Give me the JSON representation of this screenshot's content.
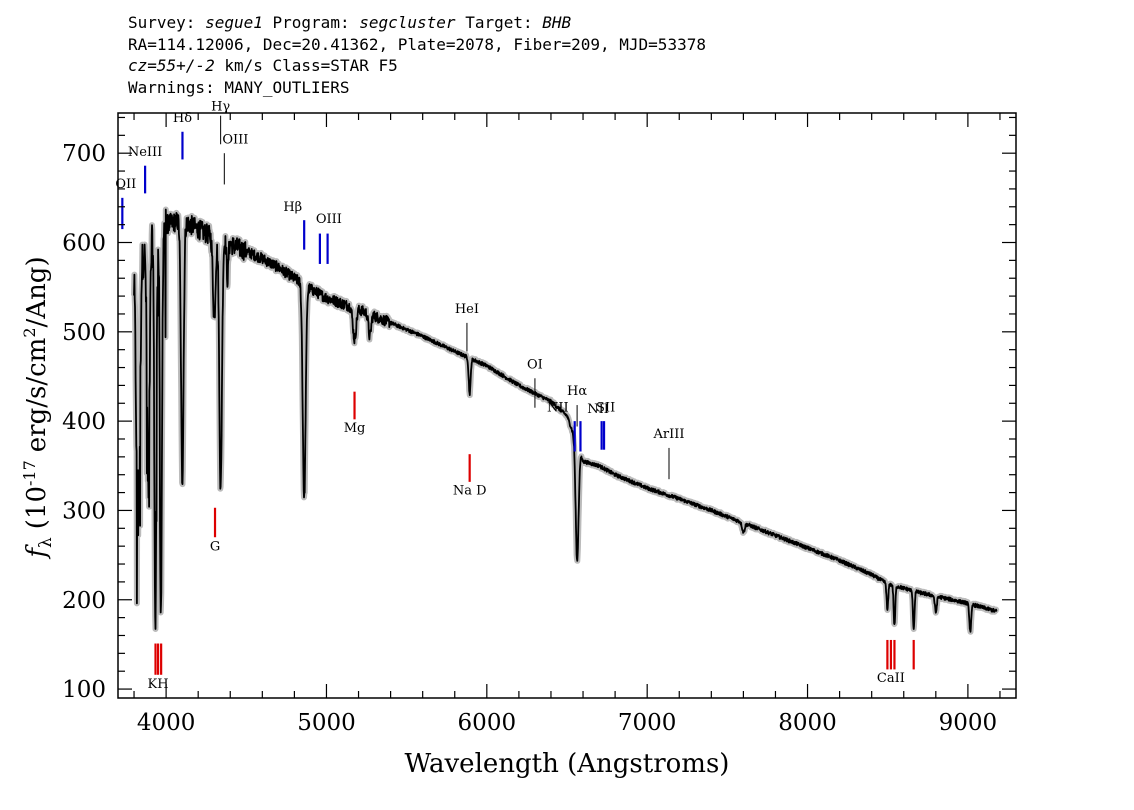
{
  "header": {
    "line1": {
      "survey_label": "Survey:",
      "survey": "segue1",
      "program_label": "Program:",
      "program": "segcluster",
      "target_label": "Target:",
      "target": "BHB"
    },
    "line2": "RA=114.12006, Dec=20.41362, Plate=2078, Fiber=209, MJD=53378",
    "line3": {
      "cz": "cz=55+/-2",
      "rest": "km/s Class=STAR F5"
    },
    "line4": "Warnings: MANY_OUTLIERS"
  },
  "chart_data": {
    "type": "line",
    "xlabel": "Wavelength (Angstroms)",
    "ylabel_parts": {
      "prefix": "f",
      "sub": "λ",
      "open": "(10",
      "exp1": "-17",
      "mid": "erg/s/cm",
      "exp2": "2",
      "close": "/Ang)"
    },
    "xlim": [
      3700,
      9300
    ],
    "ylim": [
      90,
      745
    ],
    "xticks": [
      4000,
      5000,
      6000,
      7000,
      8000,
      9000
    ],
    "yticks": [
      100,
      200,
      300,
      400,
      500,
      600,
      700
    ],
    "xtick_labels": [
      "4000",
      "5000",
      "6000",
      "7000",
      "8000",
      "9000"
    ],
    "ytick_labels": [
      "100",
      "200",
      "300",
      "400",
      "500",
      "600",
      "700"
    ],
    "colors": {
      "spectrum": "#000000",
      "error": "#bbbbbb",
      "emission": "#0000cc",
      "absorption": "#dd0000",
      "generic": "#000000"
    },
    "continuum": [
      [
        3800,
        560
      ],
      [
        3900,
        600
      ],
      [
        4000,
        620
      ],
      [
        4100,
        625
      ],
      [
        4200,
        615
      ],
      [
        4300,
        605
      ],
      [
        4400,
        598
      ],
      [
        4500,
        590
      ],
      [
        4600,
        582
      ],
      [
        4700,
        572
      ],
      [
        4800,
        560
      ],
      [
        4900,
        548
      ],
      [
        5000,
        538
      ],
      [
        5200,
        525
      ],
      [
        5400,
        510
      ],
      [
        5600,
        495
      ],
      [
        5800,
        478
      ],
      [
        6000,
        462
      ],
      [
        6200,
        440
      ],
      [
        6400,
        422
      ],
      [
        6500,
        406
      ],
      [
        6600,
        355
      ],
      [
        6700,
        350
      ],
      [
        6800,
        340
      ],
      [
        7000,
        325
      ],
      [
        7200,
        313
      ],
      [
        7400,
        300
      ],
      [
        7600,
        286
      ],
      [
        7800,
        272
      ],
      [
        8000,
        258
      ],
      [
        8200,
        244
      ],
      [
        8400,
        228
      ],
      [
        8500,
        218
      ],
      [
        8700,
        208
      ],
      [
        8900,
        200
      ],
      [
        9000,
        196
      ],
      [
        9200,
        186
      ]
    ],
    "absorption_features": [
      {
        "x": 3820,
        "depth": 240,
        "width": 8
      },
      {
        "x": 3835,
        "depth": 170,
        "width": 6
      },
      {
        "x": 3889,
        "depth": 270,
        "width": 8
      },
      {
        "x": 3933,
        "depth": 440,
        "width": 6
      },
      {
        "x": 3968,
        "depth": 440,
        "width": 6
      },
      {
        "x": 4101,
        "depth": 290,
        "width": 8
      },
      {
        "x": 4300,
        "depth": 90,
        "width": 8
      },
      {
        "x": 4340,
        "depth": 280,
        "width": 8
      },
      {
        "x": 4383,
        "depth": 40,
        "width": 5
      },
      {
        "x": 4861,
        "depth": 240,
        "width": 9
      },
      {
        "x": 5175,
        "depth": 35,
        "width": 10
      },
      {
        "x": 5270,
        "depth": 25,
        "width": 8
      },
      {
        "x": 5893,
        "depth": 40,
        "width": 6
      },
      {
        "x": 6563,
        "depth": 130,
        "width": 9
      },
      {
        "x": 7600,
        "depth": 10,
        "width": 8
      },
      {
        "x": 8498,
        "depth": 30,
        "width": 5
      },
      {
        "x": 8542,
        "depth": 45,
        "width": 5
      },
      {
        "x": 8662,
        "depth": 42,
        "width": 5
      },
      {
        "x": 8800,
        "depth": 18,
        "width": 6
      },
      {
        "x": 9015,
        "depth": 30,
        "width": 6
      }
    ],
    "lines": [
      {
        "name": "OII",
        "x": 3727,
        "color": "emission",
        "y_top": 650,
        "y_bottom": 615,
        "label_y": 661,
        "label_anchor": "start",
        "label_dx": -7
      },
      {
        "name": "NeIII",
        "x": 3869,
        "color": "emission",
        "y_top": 686,
        "y_bottom": 655,
        "label_y": 697,
        "label_anchor": "middle",
        "label_dx": 0
      },
      {
        "name": "Hδ",
        "x": 4102,
        "color": "emission",
        "y_top": 724,
        "y_bottom": 693,
        "label_y": 735,
        "label_anchor": "middle",
        "label_dx": 0
      },
      {
        "name": "Hγ",
        "x": 4340,
        "color": "generic",
        "y_top": 742,
        "y_bottom": 710,
        "label_y": 748,
        "label_anchor": "middle",
        "label_dx": 0
      },
      {
        "name": "OIII",
        "x": 4363,
        "color": "generic",
        "y_top": 700,
        "y_bottom": 665,
        "label_y": 711,
        "label_anchor": "start",
        "label_dx": -2
      },
      {
        "name": "Hβ",
        "x": 4861,
        "color": "emission",
        "y_top": 625,
        "y_bottom": 592,
        "label_y": 635,
        "label_anchor": "end",
        "label_dx": -2
      },
      {
        "name": "OIII",
        "x": 4959,
        "color": "emission",
        "y_top": 610,
        "y_bottom": 576,
        "label_y": 622,
        "label_anchor": "start",
        "label_dx": -4
      },
      {
        "name": "",
        "x": 5007,
        "color": "emission",
        "y_top": 610,
        "y_bottom": 576,
        "label_y": 0,
        "label_anchor": "middle",
        "label_dx": 0
      },
      {
        "name": "HeI",
        "x": 5876,
        "color": "generic",
        "y_top": 510,
        "y_bottom": 478,
        "label_y": 521,
        "label_anchor": "middle",
        "label_dx": 0
      },
      {
        "name": "OI",
        "x": 6300,
        "color": "generic",
        "y_top": 448,
        "y_bottom": 415,
        "label_y": 459,
        "label_anchor": "middle",
        "label_dx": 0
      },
      {
        "name": "NII",
        "x": 6548,
        "color": "emission",
        "y_top": 400,
        "y_bottom": 366,
        "label_y": 411,
        "label_anchor": "end",
        "label_dx": -6
      },
      {
        "name": "Hα",
        "x": 6563,
        "color": "generic",
        "y_top": 418,
        "y_bottom": 394,
        "label_y": 429,
        "label_anchor": "middle",
        "label_dx": 0
      },
      {
        "name": "",
        "x": 6584,
        "color": "emission",
        "y_top": 400,
        "y_bottom": 366,
        "label_y": 0,
        "label_anchor": "middle",
        "label_dx": 0
      },
      {
        "name": "SII",
        "x": 6716,
        "color": "emission",
        "y_top": 400,
        "y_bottom": 368,
        "label_y": 411,
        "label_anchor": "middle",
        "label_dx": 4
      },
      {
        "name": "NII",
        "x": 6731,
        "color": "emission",
        "y_top": 400,
        "y_bottom": 368,
        "label_y": 409,
        "label_anchor": "middle",
        "label_dx": -6
      },
      {
        "name": "ArIII",
        "x": 7136,
        "color": "generic",
        "y_top": 370,
        "y_bottom": 335,
        "label_y": 381,
        "label_anchor": "middle",
        "label_dx": 0
      },
      {
        "name": "Mg",
        "x": 5175,
        "color": "absorption",
        "y_top": 433,
        "y_bottom": 402,
        "label_y": 388,
        "label_anchor": "middle",
        "label_dx": 0
      },
      {
        "name": "Na D",
        "x": 5893,
        "color": "absorption",
        "y_top": 363,
        "y_bottom": 332,
        "label_y": 318,
        "label_anchor": "middle",
        "label_dx": 0
      },
      {
        "name": "G",
        "x": 4305,
        "color": "absorption",
        "y_top": 303,
        "y_bottom": 270,
        "label_y": 255,
        "label_anchor": "middle",
        "label_dx": 0
      },
      {
        "name": "KH",
        "x": 3950,
        "color": "absorption",
        "y_top": 151,
        "y_bottom": 116,
        "label_y": 101,
        "label_anchor": "middle",
        "label_dx": 0
      },
      {
        "name": "",
        "x": 3934,
        "color": "absorption",
        "y_top": 151,
        "y_bottom": 116,
        "label_y": 0,
        "label_anchor": "middle",
        "label_dx": 0
      },
      {
        "name": "",
        "x": 3969,
        "color": "absorption",
        "y_top": 151,
        "y_bottom": 116,
        "label_y": 0,
        "label_anchor": "middle",
        "label_dx": 0
      },
      {
        "name": "CaII",
        "x": 8520,
        "color": "absorption",
        "y_top": 155,
        "y_bottom": 122,
        "label_y": 108,
        "label_anchor": "middle",
        "label_dx": 0
      },
      {
        "name": "",
        "x": 8498,
        "color": "absorption",
        "y_top": 155,
        "y_bottom": 122,
        "label_y": 0,
        "label_anchor": "middle",
        "label_dx": 0
      },
      {
        "name": "",
        "x": 8542,
        "color": "absorption",
        "y_top": 155,
        "y_bottom": 122,
        "label_y": 0,
        "label_anchor": "middle",
        "label_dx": 0
      },
      {
        "name": "",
        "x": 8662,
        "color": "absorption",
        "y_top": 155,
        "y_bottom": 122,
        "label_y": 0,
        "label_anchor": "middle",
        "label_dx": 0
      }
    ]
  }
}
